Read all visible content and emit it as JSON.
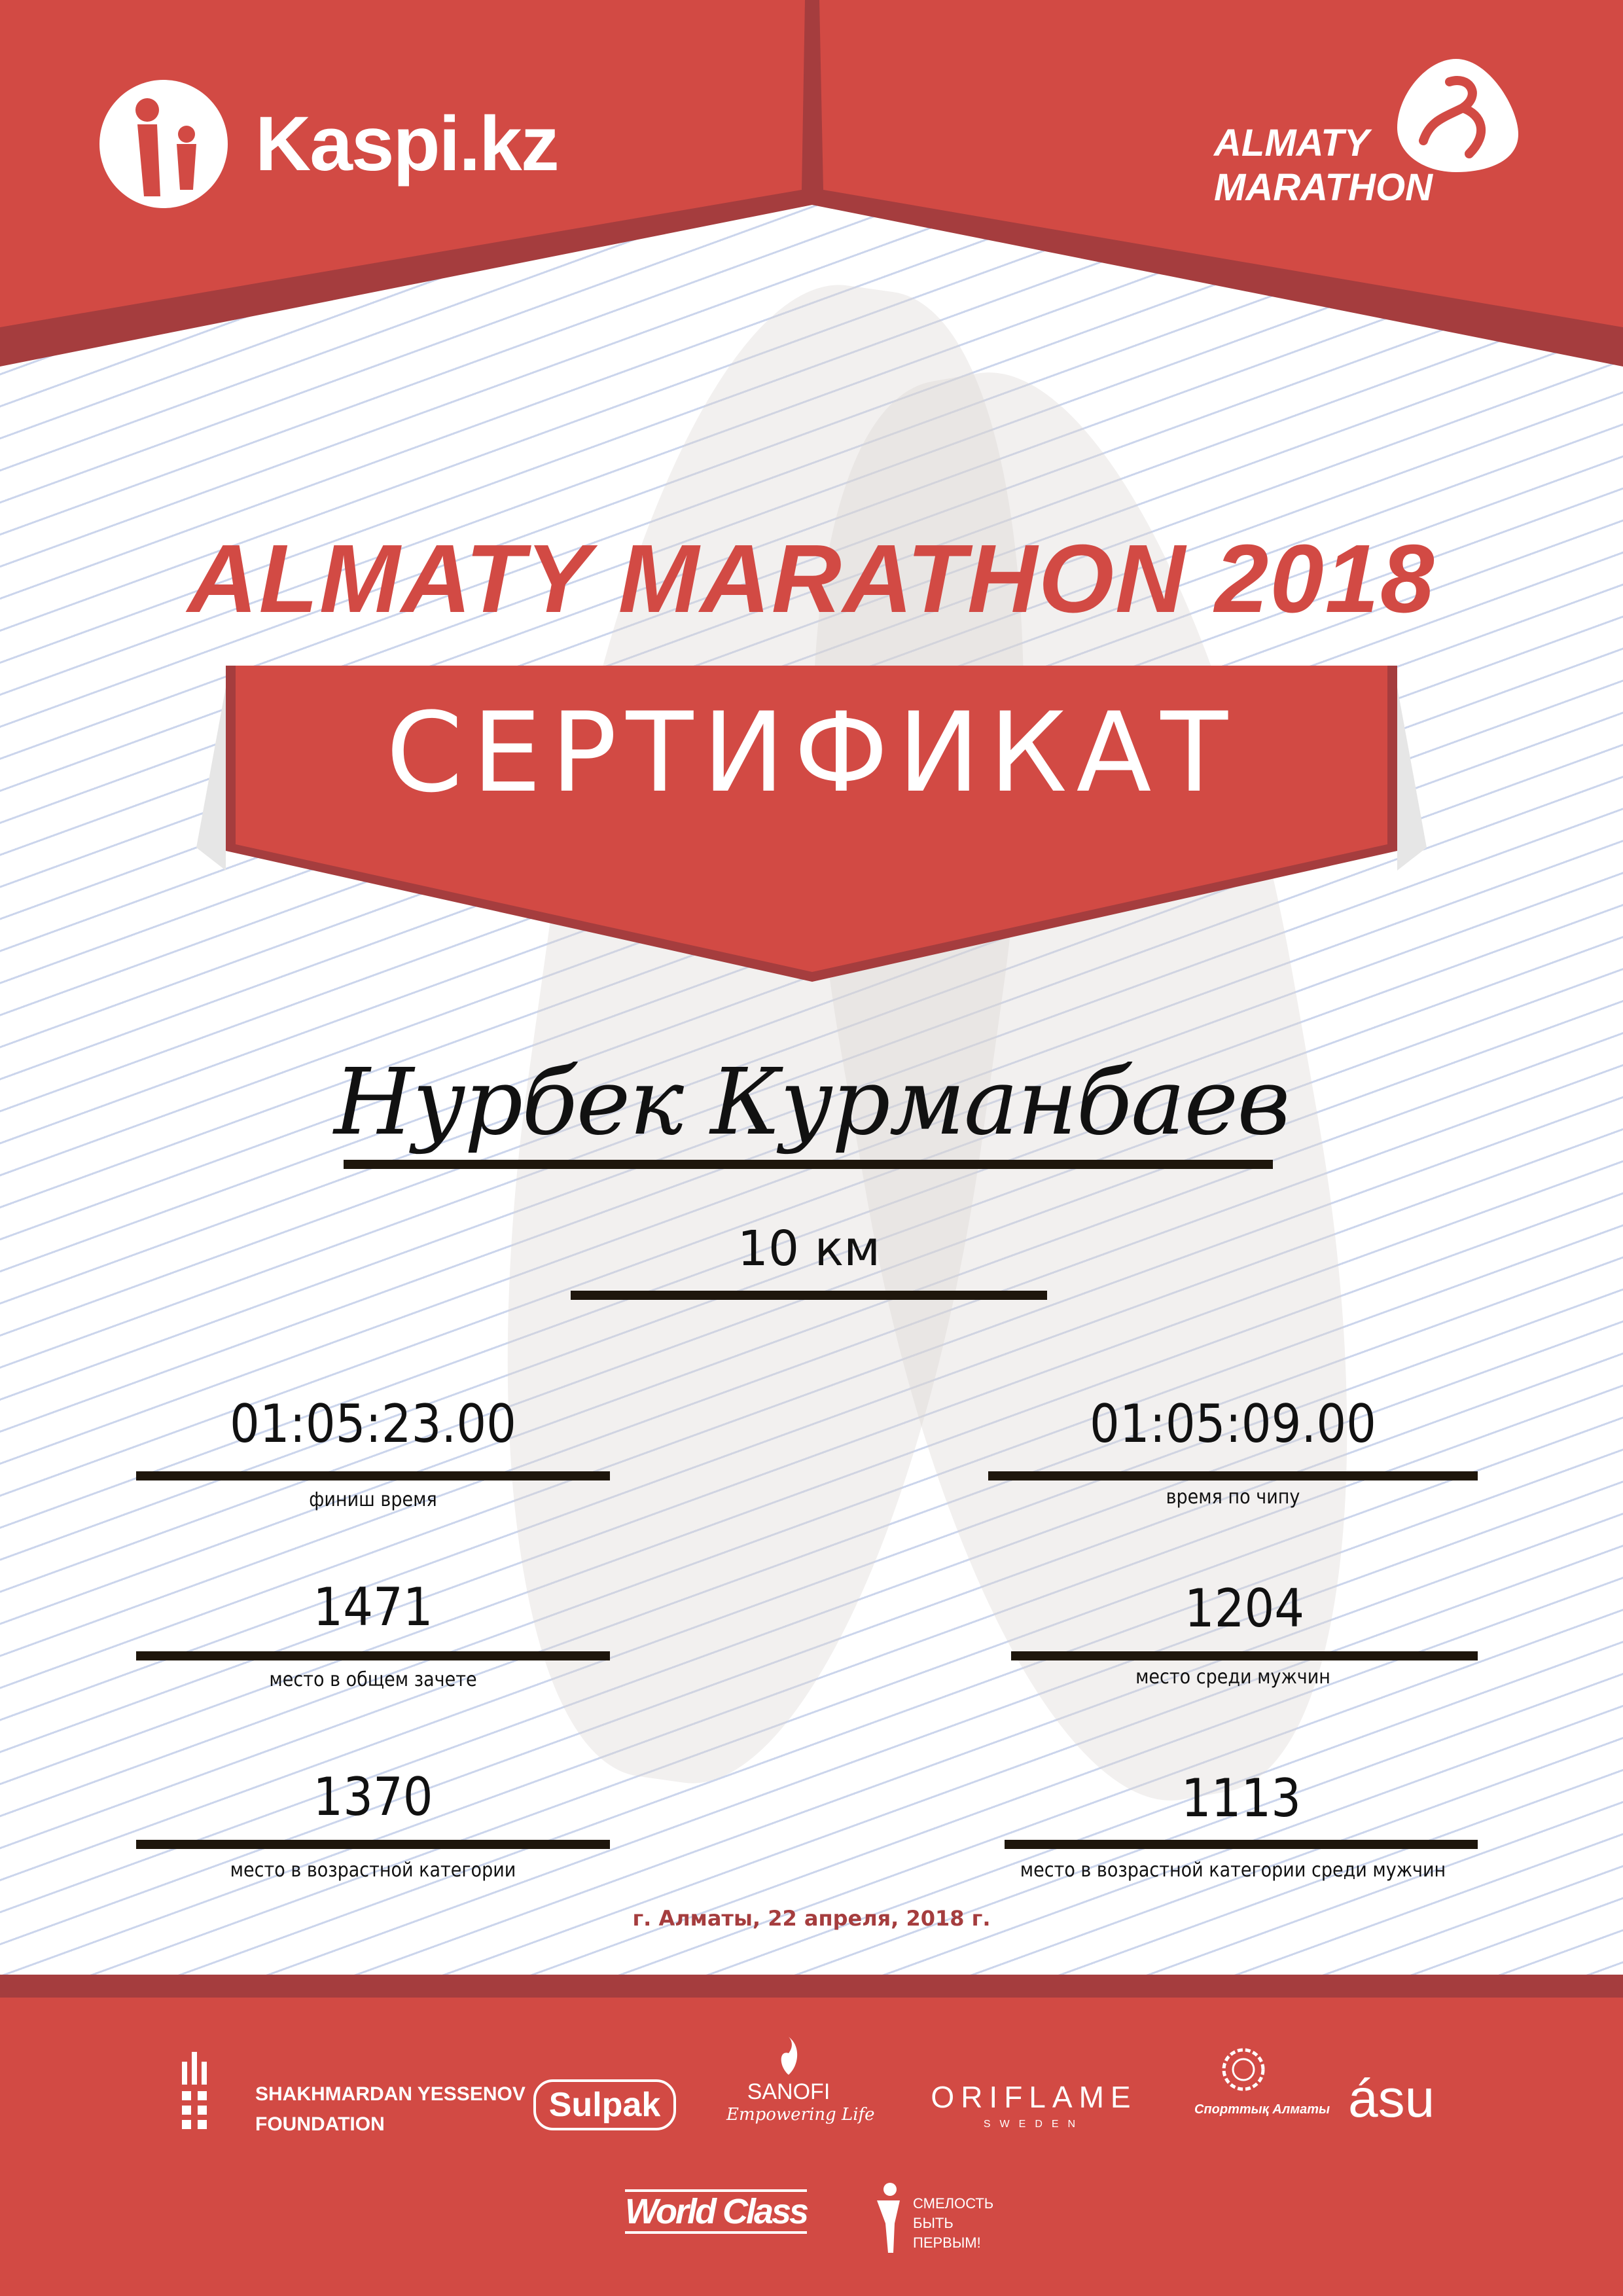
{
  "colors": {
    "brand_red": "#d24a44",
    "dark_red": "#a53d3e",
    "underline": "#1e160c",
    "background_lines": "#cbd5ec"
  },
  "header": {
    "left_logo": "Kaspi.kz",
    "right_logo_line1": "ALMATY",
    "right_logo_line2": "MARATHON"
  },
  "title": "ALMATY MARATHON 2018",
  "banner": "СЕРТИФИКАТ",
  "participant": {
    "name": "Нурбек Курманбаев",
    "distance": "10 км"
  },
  "results": {
    "finish_time": {
      "value": "01:05:23.00",
      "label": "финиш время"
    },
    "chip_time": {
      "value": "01:05:09.00",
      "label": "время по чипу"
    },
    "overall_place": {
      "value": "1471",
      "label": "место в общем зачете"
    },
    "gender_place": {
      "value": "1204",
      "label": "место среди мужчин"
    },
    "age_place": {
      "value": "1370",
      "label": "место в возрастной категории"
    },
    "age_gender_place": {
      "value": "1113",
      "label": "место в возрастной категории среди мужчин"
    }
  },
  "date_place": "г. Алматы, 22 апреля, 2018 г.",
  "sponsors": {
    "yessenov_line1": "SHAKHMARDAN YESSENOV",
    "yessenov_line2": "FOUNDATION",
    "sulpak": "Sulpak",
    "sanofi": "SANOFI",
    "sanofi_tagline": "Empowering Life",
    "oriflame": "ORIFLAME",
    "oriflame_sub": "SWEDEN",
    "sport_almaty": "Спорттық Алматы",
    "asu": "ásu",
    "worldclass": "World Class",
    "fund_line1": "СМЕЛОСТЬ",
    "fund_line2": "БЫТЬ",
    "fund_line3": "ПЕРВЫМ!"
  }
}
